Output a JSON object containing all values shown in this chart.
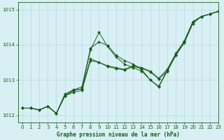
{
  "title": "Graphe pression niveau de la mer (hPa)",
  "bg_color": "#d8eff4",
  "grid_color": "#b8d8e0",
  "line_color": "#1a5c1a",
  "xlim": [
    -0.5,
    23
  ],
  "ylim": [
    1011.8,
    1015.2
  ],
  "xticks": [
    0,
    1,
    2,
    3,
    4,
    5,
    6,
    7,
    8,
    9,
    10,
    11,
    12,
    13,
    14,
    15,
    16,
    17,
    18,
    19,
    20,
    21,
    22,
    23
  ],
  "yticks": [
    1012,
    1013,
    1014,
    1015
  ],
  "series": [
    {
      "x": [
        0,
        1,
        2,
        3,
        4,
        5,
        6,
        7,
        8,
        9,
        10,
        11,
        12,
        13,
        14,
        15,
        16,
        17,
        18,
        19,
        20,
        21,
        22,
        23
      ],
      "y": [
        1012.2,
        1012.2,
        1012.15,
        1012.25,
        1012.05,
        1012.55,
        1012.7,
        1012.75,
        1013.85,
        1014.35,
        1013.95,
        1013.65,
        1013.45,
        1013.35,
        1013.25,
        1013.0,
        1012.8,
        1013.25,
        1013.7,
        1014.1,
        1014.65,
        1014.8,
        1014.87,
        1014.95
      ]
    },
    {
      "x": [
        0,
        1,
        2,
        3,
        4,
        5,
        6,
        7,
        8,
        9,
        10,
        11,
        12,
        13,
        14,
        15,
        16,
        17,
        18,
        19,
        20,
        21,
        22,
        23
      ],
      "y": [
        1012.2,
        1012.2,
        1012.15,
        1012.25,
        1012.05,
        1012.55,
        1012.7,
        1012.75,
        1013.6,
        1013.5,
        1013.4,
        1013.35,
        1013.3,
        1013.4,
        1013.35,
        1013.25,
        1013.05,
        1013.3,
        1013.75,
        1014.1,
        1014.65,
        1014.8,
        1014.87,
        1014.95
      ]
    },
    {
      "x": [
        0,
        1,
        2,
        3,
        4,
        5,
        6,
        7,
        8,
        9,
        10,
        11,
        12,
        13,
        14,
        15,
        16,
        17,
        18,
        19,
        20,
        21,
        22,
        23
      ],
      "y": [
        1012.2,
        1012.2,
        1012.15,
        1012.25,
        1012.05,
        1012.55,
        1012.65,
        1012.7,
        1013.55,
        1013.5,
        1013.38,
        1013.32,
        1013.28,
        1013.38,
        1013.33,
        1013.23,
        1013.03,
        1013.25,
        1013.7,
        1014.05,
        1014.6,
        1014.8,
        1014.87,
        1014.95
      ]
    },
    {
      "x": [
        0,
        1,
        2,
        3,
        4,
        5,
        6,
        7,
        8,
        9,
        10,
        11,
        12,
        13,
        14,
        15,
        16,
        17,
        18,
        19,
        20,
        21,
        22,
        23
      ],
      "y": [
        1012.2,
        1012.2,
        1012.15,
        1012.25,
        1012.05,
        1012.6,
        1012.72,
        1012.8,
        1013.9,
        1014.08,
        1013.98,
        1013.7,
        1013.55,
        1013.45,
        1013.3,
        1013.0,
        1012.82,
        1013.28,
        1013.72,
        1014.1,
        1014.65,
        1014.8,
        1014.87,
        1014.95
      ]
    }
  ]
}
